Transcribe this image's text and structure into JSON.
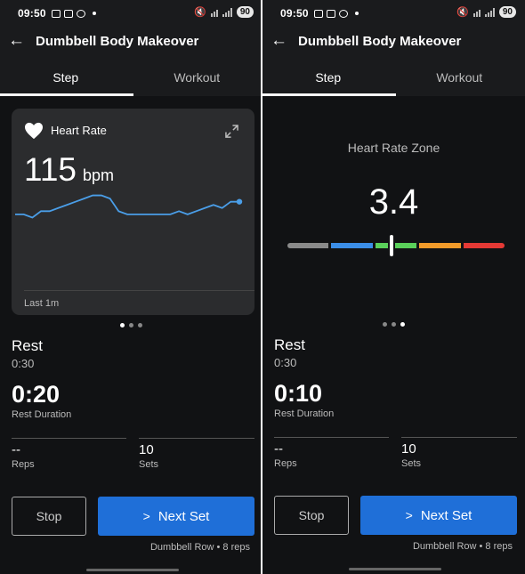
{
  "status_bar": {
    "time": "09:50",
    "battery": "90"
  },
  "app_bar": {
    "title": "Dumbbell Body Makeover"
  },
  "tabs": [
    {
      "label": "Step"
    },
    {
      "label": "Workout"
    }
  ],
  "heart_rate_card": {
    "label": "Heart Rate",
    "value": "115",
    "unit": "bpm",
    "range_label": "Last 1m",
    "trend": [
      40,
      40,
      41,
      39,
      39,
      38,
      37,
      36,
      35,
      34,
      34,
      35,
      39,
      40,
      40,
      40,
      40,
      40,
      40,
      39,
      40,
      39,
      38,
      37,
      38,
      36,
      36
    ]
  },
  "heart_rate_zone": {
    "label": "Heart Rate Zone",
    "value": "3.4",
    "level": 3.4,
    "zone_colors": [
      "#8a8a8a",
      "#3b8ee8",
      "#5ad05a",
      "#f39b2a",
      "#e53935"
    ]
  },
  "left": {
    "rest_title": "Rest",
    "rest_time": "0:30",
    "rest_duration": "0:20",
    "rest_duration_label": "Rest Duration",
    "reps_value": "--",
    "reps_label": "Reps",
    "sets_value": "10",
    "sets_label": "Sets",
    "stop_label": "Stop",
    "next_label": "Next Set",
    "next_caption": "Dumbbell Row • 8 reps"
  },
  "right": {
    "rest_title": "Rest",
    "rest_time": "0:30",
    "rest_duration": "0:10",
    "rest_duration_label": "Rest Duration",
    "reps_value": "--",
    "reps_label": "Reps",
    "sets_value": "10",
    "sets_label": "Sets",
    "stop_label": "Stop",
    "next_label": "Next Set",
    "next_caption": "Dumbbell Row • 8 reps"
  },
  "colors": {
    "accent": "#1f6fd8",
    "chart_line": "#4a9ee8"
  }
}
